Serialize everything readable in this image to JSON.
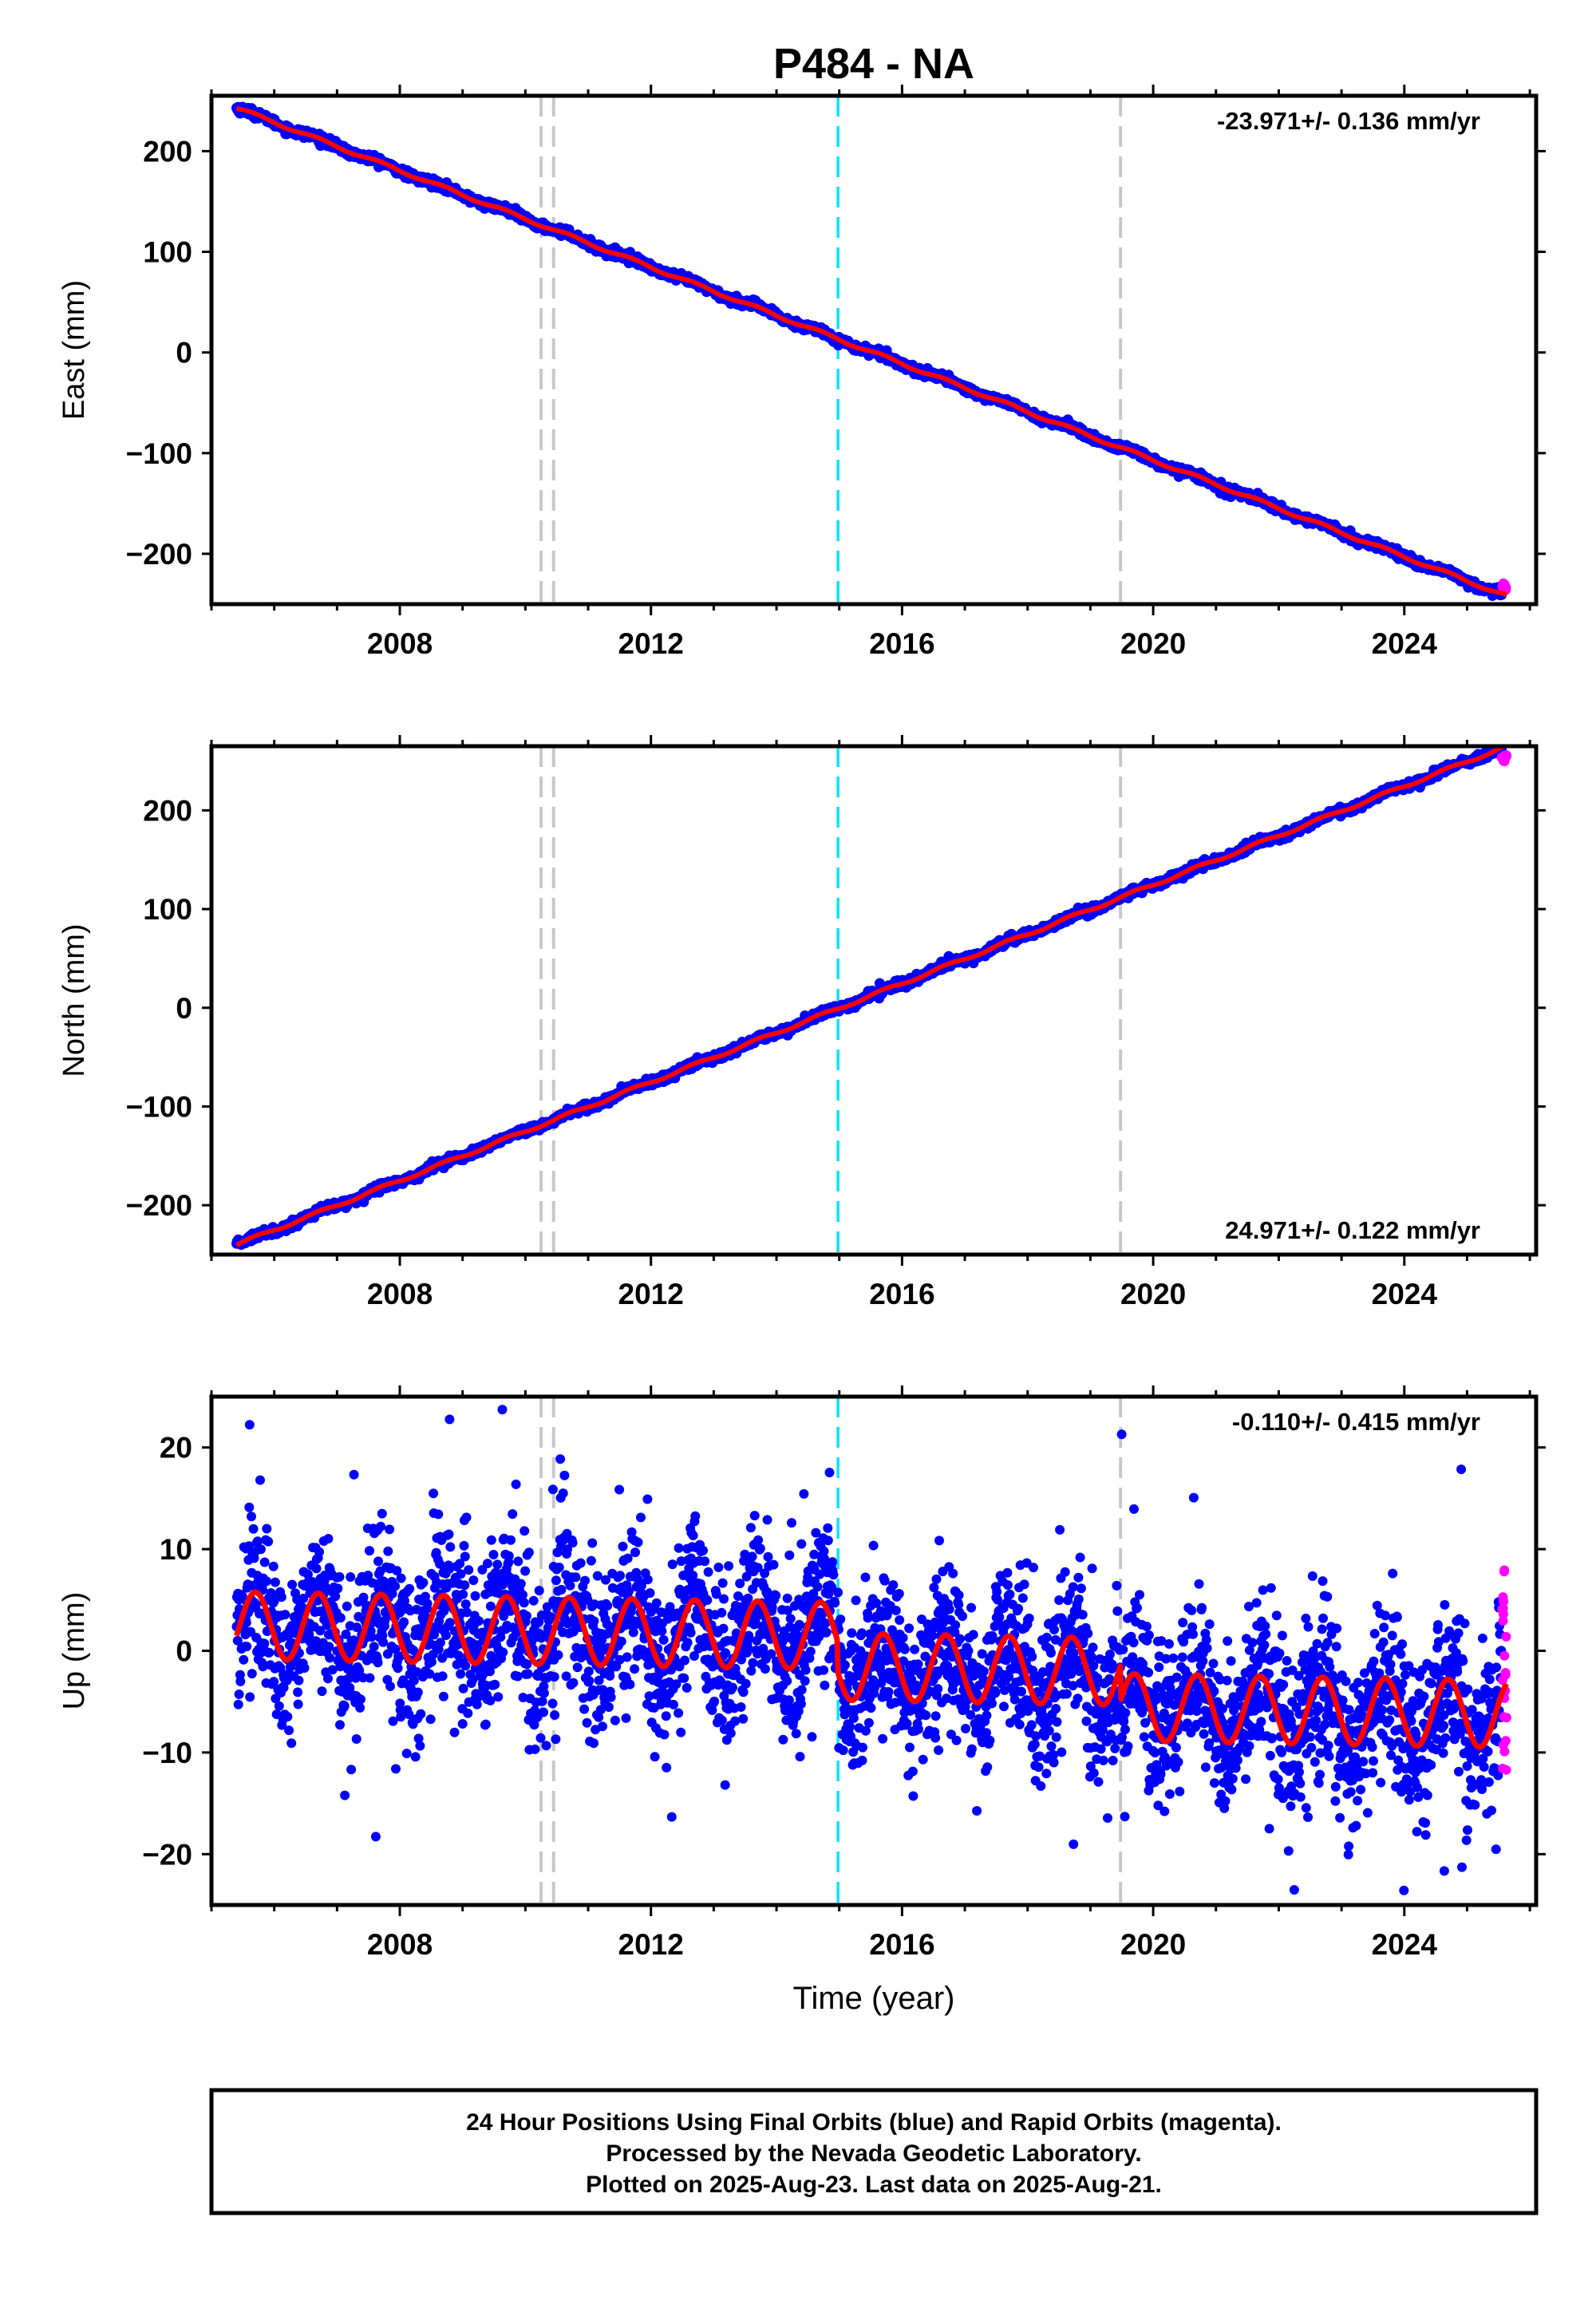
{
  "title": "P484 - NA",
  "x_axis_label": "Time (year)",
  "colors": {
    "final_orbits": "#0000ff",
    "rapid_orbits": "#ff00ff",
    "model_fit": "#ff0000",
    "equipment_change": "#c8c8c8",
    "earthquake": "#00e5ff"
  },
  "footer": {
    "line1": "24 Hour Positions Using Final Orbits (blue) and Rapid Orbits (magenta).",
    "line2": "Processed by the Nevada Geodetic Laboratory.",
    "line3": "Plotted on 2025-Aug-23. Last data on 2025-Aug-21."
  },
  "chart_data": [
    {
      "type": "scatter",
      "ylabel": "East (mm)",
      "rate_text": "-23.971+/- 0.136 mm/yr",
      "rate_position": "top-right",
      "xlim": [
        2005.0,
        2026.1
      ],
      "ylim": [
        -250,
        255
      ],
      "x_ticks": [
        2008,
        2012,
        2016,
        2020,
        2024
      ],
      "y_ticks": [
        -200,
        -100,
        0,
        100,
        200
      ],
      "data_span": [
        2005.4,
        2025.63
      ],
      "model": {
        "value_at_start": 243,
        "rate_mm_per_yr": -23.971,
        "seasonal_amplitude": 1.5,
        "offsets": []
      },
      "scatter_noise_mm": 2,
      "rapid_orbits": {
        "x_range": [
          2025.55,
          2025.63
        ],
        "y_range": [
          -238,
          -228
        ]
      },
      "vertical_lines": [
        {
          "x": 2010.25,
          "kind": "equipment_change"
        },
        {
          "x": 2010.45,
          "kind": "equipment_change"
        },
        {
          "x": 2014.98,
          "kind": "earthquake"
        },
        {
          "x": 2019.48,
          "kind": "equipment_change"
        }
      ]
    },
    {
      "type": "scatter",
      "ylabel": "North (mm)",
      "rate_text": "24.971+/- 0.122 mm/yr",
      "rate_position": "bottom-right",
      "xlim": [
        2005.0,
        2026.1
      ],
      "ylim": [
        -250,
        265
      ],
      "x_ticks": [
        2008,
        2012,
        2016,
        2020,
        2024
      ],
      "y_ticks": [
        -200,
        -100,
        0,
        100,
        200
      ],
      "data_span": [
        2005.4,
        2025.63
      ],
      "model": {
        "value_at_start": -240,
        "rate_mm_per_yr": 24.971,
        "seasonal_amplitude": 1.5,
        "offsets": []
      },
      "scatter_noise_mm": 2,
      "rapid_orbits": {
        "x_range": [
          2025.55,
          2025.63
        ],
        "y_range": [
          250,
          256
        ]
      },
      "vertical_lines": [
        {
          "x": 2010.25,
          "kind": "equipment_change"
        },
        {
          "x": 2010.45,
          "kind": "equipment_change"
        },
        {
          "x": 2014.98,
          "kind": "earthquake"
        },
        {
          "x": 2019.48,
          "kind": "equipment_change"
        }
      ]
    },
    {
      "type": "scatter",
      "ylabel": "Up (mm)",
      "rate_text": "-0.110+/- 0.415 mm/yr",
      "rate_position": "top-right",
      "xlim": [
        2005.0,
        2026.1
      ],
      "ylim": [
        -25,
        25
      ],
      "x_ticks": [
        2008,
        2012,
        2016,
        2020,
        2024
      ],
      "y_ticks": [
        -20,
        -10,
        0,
        10,
        20
      ],
      "data_span": [
        2005.4,
        2025.63
      ],
      "model": {
        "value_at_start": 2.5,
        "rate_mm_per_yr": -0.11,
        "seasonal_amplitude": 3.3,
        "offsets": [
          {
            "x": 2014.98,
            "dy": -3.0
          },
          {
            "x": 2019.48,
            "dy": -3.5
          }
        ]
      },
      "scatter_noise_mm": 4,
      "rapid_orbits": {
        "x_range": [
          2025.55,
          2025.63
        ],
        "y_range": [
          -13,
          9
        ]
      },
      "vertical_lines": [
        {
          "x": 2010.25,
          "kind": "equipment_change"
        },
        {
          "x": 2010.45,
          "kind": "equipment_change"
        },
        {
          "x": 2014.98,
          "kind": "earthquake"
        },
        {
          "x": 2019.48,
          "kind": "equipment_change"
        }
      ]
    }
  ]
}
